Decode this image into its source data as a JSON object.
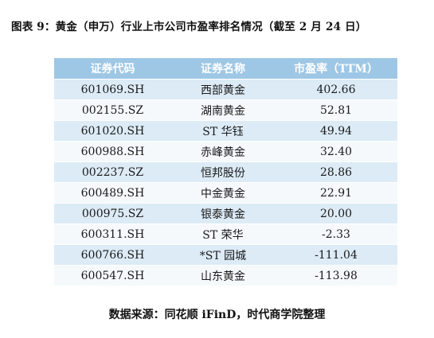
{
  "title": "图表 9：黄金（申万）行业上市公司市盈率排名情况（截至 2 月 24 日）",
  "table": {
    "headers": [
      "证券代码",
      "证券名称",
      "市盈率（TTM）"
    ],
    "rows": [
      [
        "601069.SH",
        "西部黄金",
        "402.66"
      ],
      [
        "002155.SZ",
        "湖南黄金",
        "52.81"
      ],
      [
        "601020.SH",
        "ST 华钰",
        "49.94"
      ],
      [
        "600988.SH",
        "赤峰黄金",
        "32.40"
      ],
      [
        "002237.SZ",
        "恒邦股份",
        "28.86"
      ],
      [
        "600489.SH",
        "中金黄金",
        "22.91"
      ],
      [
        "000975.SZ",
        "银泰黄金",
        "20.00"
      ],
      [
        "600311.SH",
        "ST 荣华",
        "-2.33"
      ],
      [
        "600766.SH",
        "*ST 园城",
        "-111.04"
      ],
      [
        "600547.SH",
        "山东黄金",
        "-113.98"
      ]
    ]
  },
  "source": "数据来源：同花顺 iFinD，时代商学院整理",
  "colors": {
    "header_bg": "#9ec7e5",
    "row_even": "#dcebf6",
    "row_odd": "#f5f9fc"
  }
}
